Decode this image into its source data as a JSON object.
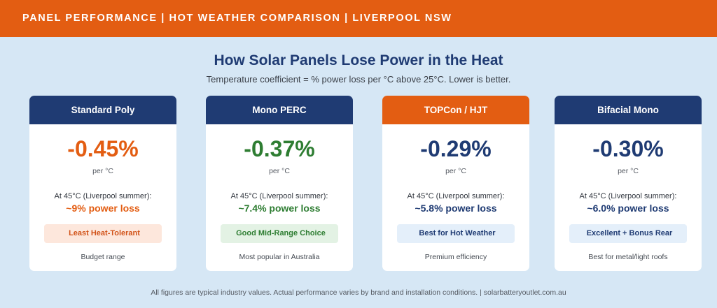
{
  "header": {
    "banner": "PANEL PERFORMANCE | HOT WEATHER COMPARISON | LIVERPOOL NSW",
    "title": "How Solar Panels Lose Power in the Heat",
    "subtitle": "Temperature coefficient = % power loss per °C above 25°C. Lower is better."
  },
  "cards": [
    {
      "name": "Standard Poly",
      "coefficient": "-0.45%",
      "unit": "per °C",
      "condition": "At 45°C (Liverpool summer):",
      "loss": "~9% power loss",
      "badge_icon": "",
      "badge": "Least Heat-Tolerant",
      "note": "Budget range",
      "accent_color": "#e35d12",
      "header_color": "#1f3b73"
    },
    {
      "name": "Mono PERC",
      "coefficient": "-0.37%",
      "unit": "per °C",
      "condition": "At 45°C (Liverpool summer):",
      "loss": "~7.4% power loss",
      "badge_icon": "",
      "badge": "Good Mid-Range Choice",
      "note": "Most popular in Australia",
      "accent_color": "#2e7d32",
      "header_color": "#1f3b73"
    },
    {
      "name": "TOPCon / HJT",
      "coefficient": "-0.29%",
      "unit": "per °C",
      "condition": "At 45°C (Liverpool summer):",
      "loss": "~5.8% power loss",
      "badge_icon": "",
      "badge": "Best for Hot Weather",
      "note": "Premium efficiency",
      "accent_color": "#1f3b73",
      "header_color": "#e35d12"
    },
    {
      "name": "Bifacial Mono",
      "coefficient": "-0.30%",
      "unit": "per °C",
      "condition": "At 45°C (Liverpool summer):",
      "loss": "~6.0% power loss",
      "badge_icon": "",
      "badge": "Excellent + Bonus Rear",
      "note": "Best for metal/light roofs",
      "accent_color": "#1f3b73",
      "header_color": "#1f3b73"
    }
  ],
  "footer": "All figures are typical industry values. Actual performance varies by brand and installation conditions. | solarbatteryoutlet.com.au"
}
